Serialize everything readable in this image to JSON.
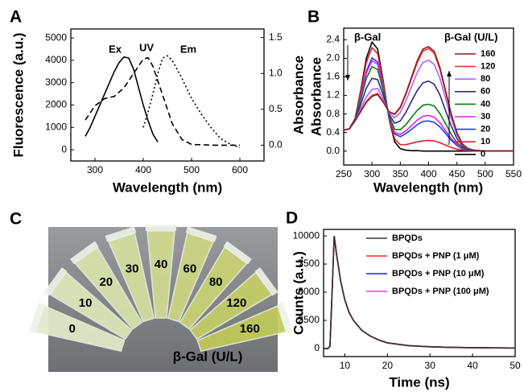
{
  "chart_data": [
    {
      "type": "line",
      "panel": "A",
      "xlabel": "Wavelength (nm)",
      "ylabel": "Fluorescence (a.u.)",
      "y2label": "Absorbance",
      "xlim": [
        250,
        650
      ],
      "xticks": [
        300,
        400,
        500,
        600
      ],
      "ylim": [
        -500,
        5400
      ],
      "yticks": [
        0,
        1000,
        2000,
        3000,
        4000,
        5000
      ],
      "y2lim": [
        -0.22,
        1.62
      ],
      "y2ticks": [
        {
          "value": 0,
          "label": "0.0"
        },
        0.5,
        {
          "value": 1,
          "label": "1.0"
        },
        1.5
      ],
      "series": [
        {
          "name": "Ex",
          "color": "#000000",
          "dash": "solid",
          "x": [
            280,
            290,
            300,
            310,
            320,
            330,
            340,
            350,
            360,
            370,
            380,
            390,
            400,
            410,
            420,
            430
          ],
          "values": [
            600,
            1000,
            1500,
            2000,
            2500,
            3000,
            3500,
            3900,
            4150,
            4100,
            3600,
            2800,
            2000,
            1300,
            700,
            350
          ]
        },
        {
          "name": "UV",
          "color": "#000000",
          "dash": "dashed",
          "axis": "y2",
          "x": [
            280,
            300,
            320,
            340,
            360,
            380,
            400,
            410,
            420,
            440,
            460,
            480,
            500,
            550,
            600
          ],
          "values": [
            0.35,
            0.55,
            0.65,
            0.68,
            0.8,
            1.0,
            1.2,
            1.22,
            1.1,
            0.7,
            0.3,
            0.08,
            0.01,
            0.0,
            0.0
          ]
        },
        {
          "name": "Em",
          "color": "#000000",
          "dash": "dotted",
          "x": [
            400,
            410,
            420,
            430,
            440,
            450,
            460,
            470,
            480,
            500,
            520,
            540,
            560,
            580,
            600
          ],
          "values": [
            1000,
            1700,
            2500,
            3400,
            4100,
            4200,
            4000,
            3600,
            3200,
            2300,
            1600,
            1000,
            500,
            250,
            100
          ]
        }
      ]
    },
    {
      "type": "line",
      "panel": "B",
      "xlabel": "Wavelength (nm)",
      "ylabel": "Absorbance",
      "annotation": "β-Gal",
      "legend_title": "β-Gal (U/L)",
      "legend": true,
      "xlim": [
        250,
        550
      ],
      "xticks": [
        250,
        300,
        350,
        400,
        450,
        500,
        550
      ],
      "ylim": [
        -0.3,
        2.65
      ],
      "yticks": [
        {
          "value": 0,
          "label": "0.0"
        },
        0.4,
        0.8,
        1.2,
        1.6,
        {
          "value": 2,
          "label": "2.0"
        },
        2.4
      ],
      "x": [
        250,
        260,
        270,
        280,
        290,
        300,
        310,
        320,
        330,
        340,
        350,
        360,
        370,
        380,
        390,
        400,
        410,
        420,
        430,
        440,
        450,
        460,
        470,
        480,
        490,
        500,
        550
      ],
      "series": [
        {
          "name": "160",
          "color": "#8b1a1a",
          "values": [
            0.45,
            0.48,
            0.65,
            0.85,
            1.05,
            1.18,
            1.22,
            1.05,
            0.85,
            0.8,
            0.95,
            1.25,
            1.6,
            1.95,
            2.2,
            2.25,
            2.15,
            1.8,
            1.3,
            0.8,
            0.4,
            0.15,
            0.05,
            0.02,
            0.01,
            0,
            0
          ]
        },
        {
          "name": "120",
          "color": "#ff3030",
          "values": [
            0.45,
            0.48,
            0.65,
            0.86,
            1.07,
            1.2,
            1.24,
            1.06,
            0.85,
            0.79,
            0.93,
            1.23,
            1.57,
            1.91,
            2.16,
            2.21,
            2.11,
            1.76,
            1.27,
            0.78,
            0.39,
            0.15,
            0.05,
            0.02,
            0.01,
            0,
            0
          ]
        },
        {
          "name": "80",
          "color": "#b060ff",
          "values": [
            0.45,
            0.48,
            0.66,
            0.91,
            1.17,
            1.33,
            1.35,
            1.11,
            0.83,
            0.72,
            0.83,
            1.09,
            1.39,
            1.7,
            1.91,
            1.96,
            1.87,
            1.57,
            1.13,
            0.7,
            0.35,
            0.13,
            0.04,
            0.02,
            0.01,
            0,
            0
          ]
        },
        {
          "name": "60",
          "color": "#2b2b8c",
          "values": [
            0.45,
            0.48,
            0.67,
            1.0,
            1.36,
            1.57,
            1.54,
            1.2,
            0.8,
            0.6,
            0.65,
            0.84,
            1.08,
            1.31,
            1.47,
            1.51,
            1.44,
            1.21,
            0.87,
            0.54,
            0.27,
            0.1,
            0.03,
            0.01,
            0.01,
            0,
            0
          ]
        },
        {
          "name": "40",
          "color": "#0a7a0a",
          "values": [
            0.45,
            0.48,
            0.68,
            1.1,
            1.57,
            1.82,
            1.76,
            1.3,
            0.77,
            0.47,
            0.46,
            0.57,
            0.73,
            0.88,
            0.99,
            1.01,
            0.97,
            0.81,
            0.59,
            0.36,
            0.18,
            0.07,
            0.02,
            0.01,
            0,
            0,
            0
          ]
        },
        {
          "name": "30",
          "color": "#e020e0",
          "values": [
            0.45,
            0.48,
            0.68,
            1.15,
            1.68,
            1.95,
            1.87,
            1.35,
            0.75,
            0.4,
            0.36,
            0.44,
            0.55,
            0.67,
            0.75,
            0.77,
            0.73,
            0.61,
            0.44,
            0.27,
            0.14,
            0.05,
            0.02,
            0.01,
            0,
            0,
            0
          ]
        },
        {
          "name": "20",
          "color": "#1a3cff",
          "values": [
            0.45,
            0.48,
            0.69,
            1.17,
            1.72,
            2.01,
            1.92,
            1.37,
            0.74,
            0.37,
            0.31,
            0.38,
            0.47,
            0.57,
            0.64,
            0.65,
            0.62,
            0.52,
            0.38,
            0.23,
            0.12,
            0.04,
            0.01,
            0.01,
            0,
            0,
            0
          ]
        },
        {
          "name": "10",
          "color": "#e8202a",
          "values": [
            0.45,
            0.48,
            0.7,
            1.26,
            1.91,
            2.23,
            2.1,
            1.46,
            0.72,
            0.26,
            0.14,
            0.14,
            0.17,
            0.2,
            0.22,
            0.23,
            0.22,
            0.18,
            0.13,
            0.08,
            0.04,
            0.02,
            0.01,
            0,
            0,
            0,
            0
          ]
        },
        {
          "name": "0",
          "color": "#000000",
          "values": [
            0.45,
            0.48,
            0.7,
            1.3,
            2.0,
            2.35,
            2.2,
            1.5,
            0.7,
            0.2,
            0.05,
            0.02,
            0.01,
            0.01,
            0,
            0,
            0,
            0,
            0,
            0,
            0,
            0,
            0,
            0,
            0,
            0,
            0
          ]
        }
      ]
    },
    {
      "type": "line",
      "panel": "D",
      "xlabel": "Time (ns)",
      "ylabel": "Counts (a.u.)",
      "legend": true,
      "xlim": [
        5,
        50
      ],
      "xticks": [
        10,
        20,
        30,
        40,
        50
      ],
      "ylim": [
        -720,
        10580
      ],
      "yticks": [
        0,
        2500,
        5000,
        7500,
        10000
      ],
      "x": [
        5,
        6,
        6.5,
        7,
        7.5,
        8,
        9,
        10,
        11,
        12,
        14,
        16,
        18,
        20,
        25,
        30,
        35,
        40,
        45,
        50
      ],
      "series": [
        {
          "name": "BPQDs",
          "color": "#333333",
          "values": [
            0,
            0,
            200,
            5000,
            10000,
            8500,
            6000,
            4300,
            3200,
            2500,
            1600,
            1100,
            750,
            500,
            250,
            150,
            100,
            70,
            50,
            40
          ]
        },
        {
          "name": "BPQDs + PNP (1 μM)",
          "color": "#ff2020",
          "values": [
            0,
            0,
            200,
            5000,
            10000,
            8500,
            6000,
            4300,
            3200,
            2500,
            1600,
            1100,
            750,
            500,
            250,
            150,
            100,
            70,
            50,
            40
          ]
        },
        {
          "name": "BPQDs + PNP (10 μM)",
          "color": "#2020c0",
          "values": [
            0,
            0,
            200,
            5000,
            10000,
            8500,
            6000,
            4300,
            3200,
            2500,
            1600,
            1100,
            750,
            500,
            250,
            150,
            100,
            70,
            50,
            40
          ]
        },
        {
          "name": "BPQDs + PNP (100 μM)",
          "color": "#e040e0",
          "values": [
            0,
            0,
            200,
            5000,
            10000,
            8500,
            6000,
            4300,
            3200,
            2500,
            1600,
            1100,
            750,
            500,
            250,
            150,
            100,
            70,
            50,
            40
          ]
        }
      ]
    }
  ],
  "photo": {
    "panel": "C",
    "tube_labels": [
      "0",
      "10",
      "20",
      "30",
      "40",
      "60",
      "80",
      "120",
      "160"
    ],
    "caption": "β-Gal (U/L)"
  }
}
